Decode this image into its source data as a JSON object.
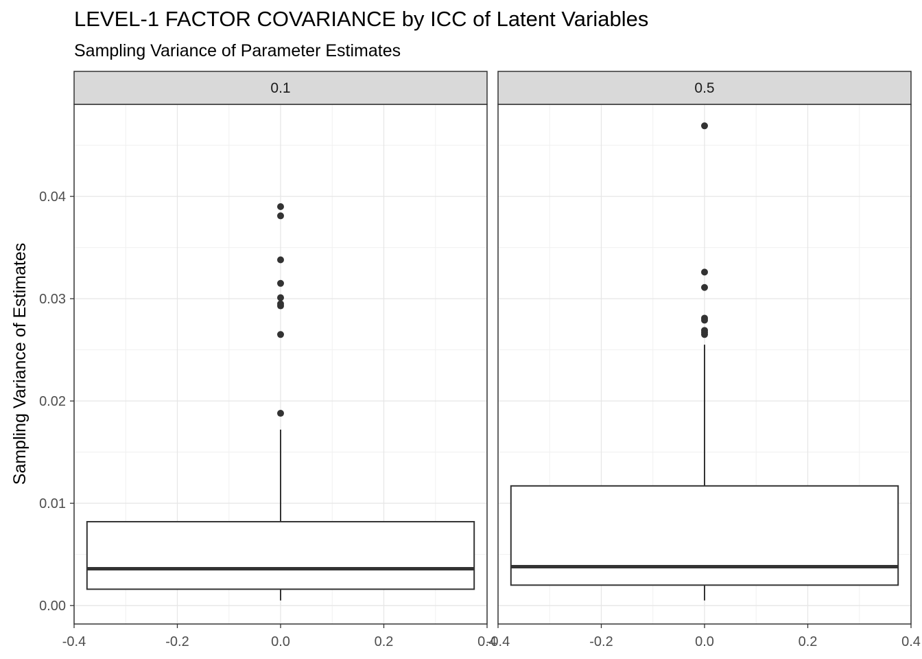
{
  "chart_data": {
    "type": "boxplot",
    "title": "LEVEL-1 FACTOR COVARIANCE by ICC of Latent Variables",
    "subtitle": "Sampling Variance of Parameter Estimates",
    "ylabel": "Sampling Variance of Estimates",
    "xlabel": "",
    "xlim": [
      -0.4,
      0.4
    ],
    "ylim": [
      -0.0018,
      0.049
    ],
    "x_ticks": [
      -0.4,
      -0.2,
      0.0,
      0.2,
      0.4
    ],
    "x_tick_labels": [
      "-0.4",
      "-0.2",
      "0.0",
      "0.2",
      "0.4"
    ],
    "y_ticks": [
      0.0,
      0.01,
      0.02,
      0.03,
      0.04
    ],
    "y_tick_labels": [
      "0.00",
      "0.01",
      "0.02",
      "0.03",
      "0.04"
    ],
    "grid": true,
    "panels": [
      {
        "facet": "0.1",
        "box_x": 0.0,
        "box_width": 0.75,
        "min": 0.0005,
        "q1": 0.0016,
        "median": 0.0036,
        "q3": 0.0082,
        "upper_whisker": 0.0172,
        "outliers": [
          0.0188,
          0.0265,
          0.0293,
          0.0295,
          0.0301,
          0.0315,
          0.0338,
          0.0381,
          0.039
        ]
      },
      {
        "facet": "0.5",
        "box_x": 0.0,
        "box_width": 0.75,
        "min": 0.0005,
        "q1": 0.002,
        "median": 0.0038,
        "q3": 0.0117,
        "upper_whisker": 0.0255,
        "outliers": [
          0.0265,
          0.0267,
          0.0269,
          0.0279,
          0.0281,
          0.0311,
          0.0326,
          0.0469
        ]
      }
    ]
  }
}
